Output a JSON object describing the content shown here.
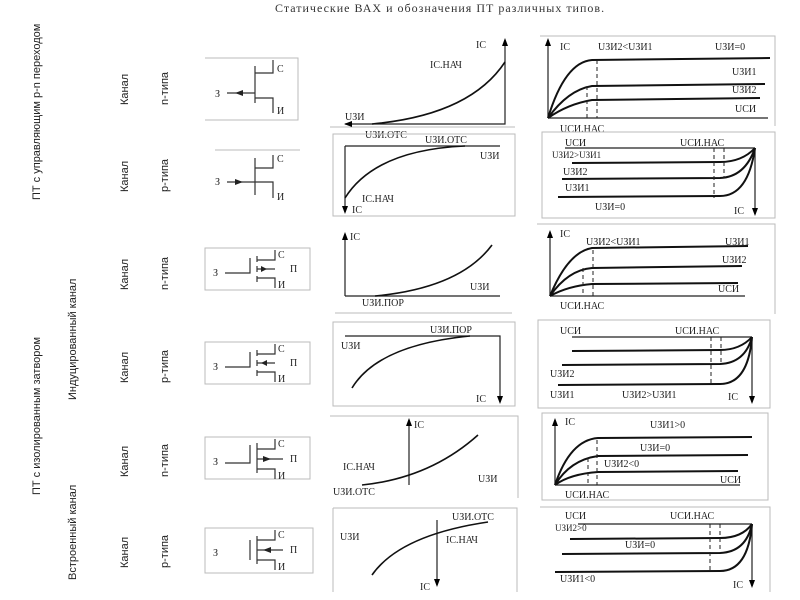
{
  "title": "Статические ВАХ и обозначения ПТ различных типов.",
  "groups": {
    "jfet": "ПТ с управляющим p-n переходом",
    "mosfet": "ПТ с изолированным затвором",
    "induced": "Индуцированный канал",
    "builtin": "Встроенный канал"
  },
  "rows": [
    {
      "channel": "Канал",
      "type": "n-типа",
      "symbol": {
        "gate": "З",
        "drain": "С",
        "source": "И"
      },
      "transfer": [
        "IC",
        "IС.НАЧ",
        "UЗИ",
        "UЗИ.ОТС"
      ],
      "output": [
        "IC",
        "UЗИ2<UЗИ1",
        "UЗИ=0",
        "UЗИ1",
        "UЗИ2",
        "UСИ",
        "UСИ.НАС"
      ]
    },
    {
      "channel": "Канал",
      "type": "p-типа",
      "symbol": {
        "gate": "З",
        "drain": "С",
        "source": "И"
      },
      "transfer": [
        "UЗИ.ОТС",
        "UЗИ",
        "IС.НАЧ",
        "IC"
      ],
      "output": [
        "UСИ",
        "UСИ.НАС",
        "UЗИ2>UЗИ1",
        "UЗИ2",
        "UЗИ1",
        "UЗИ=0",
        "IC"
      ]
    },
    {
      "channel": "Канал",
      "type": "n-типа",
      "symbol": {
        "gate": "З",
        "drain": "С",
        "source": "И",
        "substrate": "П"
      },
      "transfer": [
        "IC",
        "UЗИ",
        "UЗИ.ПОР"
      ],
      "output": [
        "IC",
        "UЗИ2<UЗИ1",
        "UЗИ1",
        "UЗИ2",
        "UСИ",
        "UСИ.НАС"
      ]
    },
    {
      "channel": "Канал",
      "type": "p-типа",
      "symbol": {
        "gate": "З",
        "drain": "С",
        "source": "И",
        "substrate": "П"
      },
      "transfer": [
        "UЗИ.ПОР",
        "UЗИ",
        "IC"
      ],
      "output": [
        "UСИ",
        "UСИ.НАС",
        "UЗИ2",
        "UЗИ1",
        "UЗИ2>UЗИ1",
        "IC"
      ]
    },
    {
      "channel": "Канал",
      "type": "n-типа",
      "symbol": {
        "gate": "З",
        "drain": "С",
        "source": "И",
        "substrate": "П"
      },
      "transfer": [
        "IC",
        "IС.НАЧ",
        "UЗИ",
        "UЗИ.ОТС"
      ],
      "output": [
        "IC",
        "UЗИ1>0",
        "UЗИ=0",
        "UЗИ2<0",
        "UСИ",
        "UСИ.НАС"
      ]
    },
    {
      "channel": "Канал",
      "type": "p-типа",
      "symbol": {
        "gate": "З",
        "drain": "С",
        "source": "И",
        "substrate": "П"
      },
      "transfer": [
        "UЗИ",
        "UЗИ.ОТС",
        "IС.НАЧ",
        "IC"
      ],
      "output": [
        "UСИ",
        "UСИ.НАС",
        "UЗИ2>0",
        "UЗИ=0",
        "UЗИ1<0",
        "IC"
      ]
    }
  ]
}
